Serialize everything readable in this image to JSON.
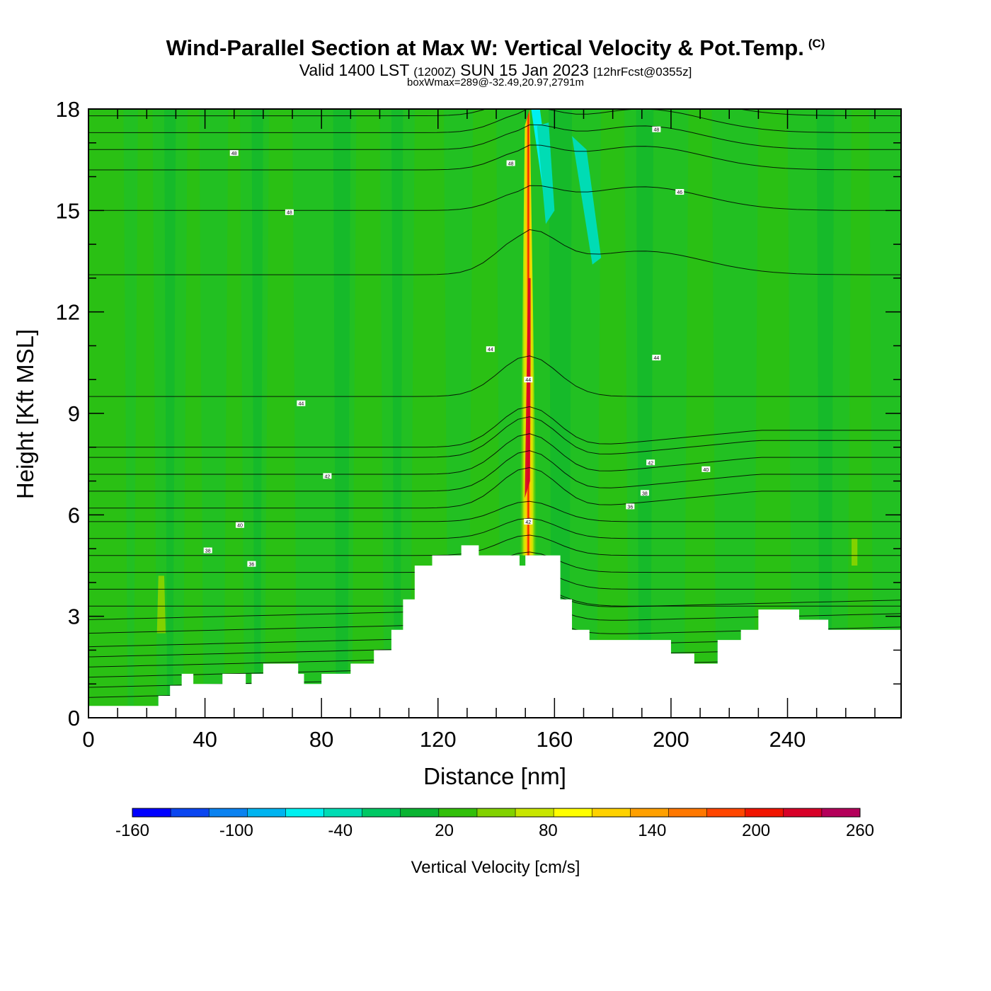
{
  "header": {
    "title": "Wind-Parallel Section at Max W: Vertical Velocity & Pot.Temp.",
    "copyright": "(C)",
    "subtitle_a": "Valid 1400 LST",
    "subtitle_b": "(1200Z)",
    "subtitle_c": "SUN 15 Jan 2023",
    "subtitle_d": "[12hrFcst@0355z]",
    "subtitle2": "boxWmax=289@-32.49,20.97,2791m"
  },
  "chart_data": {
    "type": "heatmap",
    "title": "Wind-Parallel Section at Max W: Vertical Velocity & Pot.Temp.",
    "xlabel": "Distance [nm]",
    "ylabel": "Height [Kft MSL]",
    "xlim": [
      0,
      279
    ],
    "ylim": [
      0,
      18
    ],
    "x_ticks": [
      "0",
      "40",
      "80",
      "120",
      "160",
      "200",
      "240"
    ],
    "y_ticks": [
      "0",
      "3",
      "6",
      "9",
      "12",
      "15",
      "18"
    ],
    "background_color": "#22c022",
    "updraft": {
      "x_center": 151,
      "peak_height_kft": 10,
      "max_cm_s": 289
    },
    "terrain_kft": [
      [
        0,
        0.35
      ],
      [
        20,
        0.35
      ],
      [
        24,
        0.65
      ],
      [
        28,
        0.95
      ],
      [
        32,
        1.3
      ],
      [
        36,
        1.0
      ],
      [
        42,
        1.0
      ],
      [
        46,
        1.3
      ],
      [
        52,
        1.3
      ],
      [
        54,
        1.0
      ],
      [
        56,
        1.3
      ],
      [
        60,
        1.6
      ],
      [
        68,
        1.6
      ],
      [
        72,
        1.3
      ],
      [
        74,
        1.0
      ],
      [
        80,
        1.3
      ],
      [
        90,
        1.6
      ],
      [
        98,
        2.0
      ],
      [
        104,
        2.6
      ],
      [
        108,
        3.5
      ],
      [
        112,
        4.5
      ],
      [
        118,
        4.8
      ],
      [
        128,
        5.1
      ],
      [
        134,
        4.8
      ],
      [
        145,
        4.8
      ],
      [
        148,
        4.5
      ],
      [
        150,
        4.8
      ],
      [
        160,
        4.8
      ],
      [
        162,
        3.5
      ],
      [
        166,
        2.6
      ],
      [
        172,
        2.3
      ],
      [
        196,
        2.3
      ],
      [
        200,
        1.9
      ],
      [
        208,
        1.6
      ],
      [
        216,
        2.3
      ],
      [
        224,
        2.6
      ],
      [
        230,
        3.2
      ],
      [
        244,
        2.9
      ],
      [
        254,
        2.6
      ],
      [
        278,
        2.6
      ],
      [
        279,
        2.9
      ]
    ],
    "isentrope_labels": [
      {
        "x": 50,
        "y": 16.7,
        "text": "48"
      },
      {
        "x": 69,
        "y": 14.95,
        "text": "48"
      },
      {
        "x": 73,
        "y": 9.3,
        "text": "44"
      },
      {
        "x": 82,
        "y": 7.15,
        "text": "42"
      },
      {
        "x": 52,
        "y": 5.7,
        "text": "40"
      },
      {
        "x": 41,
        "y": 4.95,
        "text": "38"
      },
      {
        "x": 56,
        "y": 4.55,
        "text": "36"
      },
      {
        "x": 138,
        "y": 10.9,
        "text": "44"
      },
      {
        "x": 151,
        "y": 10.0,
        "text": "44"
      },
      {
        "x": 145,
        "y": 16.4,
        "text": "48"
      },
      {
        "x": 151,
        "y": 5.8,
        "text": "42"
      },
      {
        "x": 195,
        "y": 17.4,
        "text": "48"
      },
      {
        "x": 203,
        "y": 15.55,
        "text": "46"
      },
      {
        "x": 195,
        "y": 10.65,
        "text": "44"
      },
      {
        "x": 193,
        "y": 7.55,
        "text": "42"
      },
      {
        "x": 212,
        "y": 7.35,
        "text": "40"
      },
      {
        "x": 191,
        "y": 6.65,
        "text": "38"
      },
      {
        "x": 186,
        "y": 6.25,
        "text": "36"
      }
    ]
  },
  "colorbar": {
    "label": "Vertical Velocity [cm/s]",
    "tick_labels": [
      "-160",
      "-100",
      "-40",
      "20",
      "80",
      "140",
      "200",
      "260"
    ],
    "colors": [
      "#0000ff",
      "#0a46f0",
      "#0a82f0",
      "#00b4f0",
      "#00f0f0",
      "#00dcb4",
      "#00c864",
      "#0ab432",
      "#32c00a",
      "#82d200",
      "#c8e600",
      "#ffff00",
      "#ffd200",
      "#ffa000",
      "#ff7800",
      "#ff4600",
      "#f01400",
      "#d70028",
      "#b4005a"
    ]
  }
}
